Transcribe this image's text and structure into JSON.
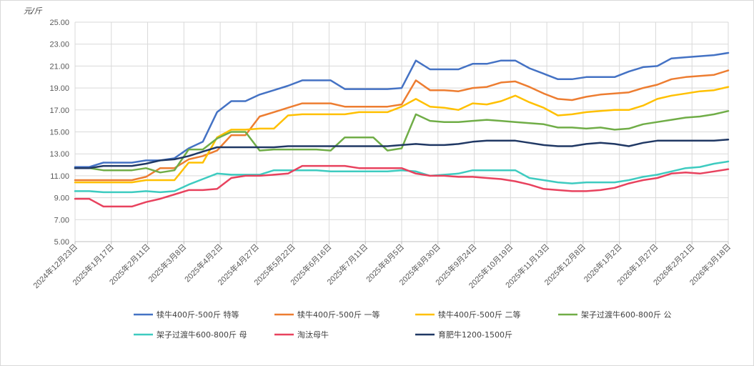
{
  "chart_data": {
    "type": "line",
    "title": "",
    "unit_label": "元/斤",
    "xlabel": "",
    "ylabel": "元/斤",
    "ylim": [
      5,
      25
    ],
    "y_ticks": [
      "5.00",
      "7.00",
      "9.00",
      "11.00",
      "13.00",
      "15.00",
      "17.00",
      "19.00",
      "21.00",
      "23.00",
      "25.00"
    ],
    "grid": true,
    "legend_position": "bottom",
    "x_tick_labels": [
      "2024年12月23日",
      "2025年1月17日",
      "2025年2月11日",
      "2025年3月8日",
      "2025年4月2日",
      "2025年4月27日",
      "2025年5月22日",
      "2025年6月16日",
      "2025年7月11日",
      "2025年8月5日",
      "2025年8月30日",
      "2025年9月24日",
      "2025年10月19日",
      "2025年11月13日",
      "2025年12月8日",
      "2026年1月2日",
      "2026年1月27日",
      "2026年2月21日",
      "2026年3月18日"
    ],
    "series": [
      {
        "name": "犊牛400斤-500斤 特等",
        "color": "#4472C4",
        "values": [
          11.8,
          11.8,
          12.2,
          12.2,
          12.2,
          12.4,
          12.4,
          12.6,
          13.5,
          14.1,
          16.8,
          17.8,
          17.8,
          18.4,
          18.8,
          19.2,
          19.7,
          19.7,
          19.7,
          18.9,
          18.9,
          18.9,
          18.9,
          19.0,
          21.5,
          20.7,
          20.7,
          20.7,
          21.2,
          21.2,
          21.5,
          21.5,
          20.8,
          20.3,
          19.8,
          19.8,
          20.0,
          20.0,
          20.0,
          20.5,
          20.9,
          21.0,
          21.7,
          21.8,
          21.9,
          22.0,
          22.2
        ]
      },
      {
        "name": "犊牛400斤-500斤 一等",
        "color": "#ED7D31",
        "values": [
          10.6,
          10.6,
          10.6,
          10.6,
          10.6,
          10.9,
          11.7,
          11.7,
          12.5,
          12.8,
          13.3,
          14.7,
          14.7,
          16.4,
          16.8,
          17.2,
          17.6,
          17.6,
          17.6,
          17.3,
          17.3,
          17.3,
          17.3,
          17.5,
          19.7,
          18.8,
          18.8,
          18.7,
          19.0,
          19.1,
          19.5,
          19.6,
          19.1,
          18.5,
          18.0,
          17.9,
          18.2,
          18.4,
          18.5,
          18.6,
          19.0,
          19.3,
          19.8,
          20.0,
          20.1,
          20.2,
          20.6
        ]
      },
      {
        "name": "犊牛400斤-500斤 二等",
        "color": "#FFC000",
        "values": [
          10.4,
          10.4,
          10.4,
          10.4,
          10.4,
          10.6,
          10.6,
          10.6,
          12.2,
          12.2,
          14.5,
          15.2,
          15.2,
          15.3,
          15.3,
          16.5,
          16.6,
          16.6,
          16.6,
          16.6,
          16.8,
          16.8,
          16.8,
          17.3,
          18.0,
          17.3,
          17.2,
          17.0,
          17.6,
          17.5,
          17.8,
          18.3,
          17.7,
          17.2,
          16.5,
          16.6,
          16.8,
          16.9,
          17.0,
          17.0,
          17.4,
          18.0,
          18.3,
          18.5,
          18.7,
          18.8,
          19.1
        ]
      },
      {
        "name": "架子过渡牛600-800斤 公",
        "color": "#70AD47",
        "values": [
          11.7,
          11.7,
          11.5,
          11.5,
          11.5,
          11.7,
          11.3,
          11.5,
          13.4,
          13.4,
          14.4,
          15.0,
          15.0,
          13.3,
          13.4,
          13.4,
          13.4,
          13.4,
          13.3,
          14.5,
          14.5,
          14.5,
          13.3,
          13.5,
          16.6,
          16.0,
          15.9,
          15.9,
          16.0,
          16.1,
          16.0,
          15.9,
          15.8,
          15.7,
          15.4,
          15.4,
          15.3,
          15.4,
          15.2,
          15.3,
          15.7,
          15.9,
          16.1,
          16.3,
          16.4,
          16.6,
          16.9
        ]
      },
      {
        "name": "架子过渡牛600-800斤 母",
        "color": "#3ECBC0",
        "values": [
          9.6,
          9.6,
          9.5,
          9.5,
          9.5,
          9.6,
          9.5,
          9.6,
          10.2,
          10.7,
          11.2,
          11.1,
          11.1,
          11.1,
          11.5,
          11.5,
          11.5,
          11.5,
          11.4,
          11.4,
          11.4,
          11.4,
          11.4,
          11.5,
          11.4,
          11.0,
          11.1,
          11.2,
          11.5,
          11.5,
          11.5,
          11.5,
          10.8,
          10.6,
          10.4,
          10.3,
          10.4,
          10.4,
          10.4,
          10.6,
          10.9,
          11.1,
          11.4,
          11.7,
          11.8,
          12.1,
          12.3
        ]
      },
      {
        "name": "淘汰母牛",
        "color": "#E8425E",
        "values": [
          8.9,
          8.9,
          8.2,
          8.2,
          8.2,
          8.6,
          8.9,
          9.3,
          9.7,
          9.7,
          9.8,
          10.8,
          11.0,
          11.0,
          11.1,
          11.2,
          11.9,
          11.9,
          11.9,
          11.9,
          11.7,
          11.7,
          11.7,
          11.7,
          11.2,
          11.0,
          11.0,
          10.9,
          10.9,
          10.8,
          10.7,
          10.5,
          10.2,
          9.8,
          9.7,
          9.6,
          9.6,
          9.7,
          9.9,
          10.3,
          10.6,
          10.8,
          11.2,
          11.3,
          11.2,
          11.4,
          11.6
        ]
      },
      {
        "name": "育肥牛1200-1500斤",
        "color": "#203864",
        "values": [
          11.7,
          11.7,
          11.9,
          11.9,
          11.9,
          12.1,
          12.4,
          12.5,
          12.8,
          13.2,
          13.6,
          13.6,
          13.6,
          13.6,
          13.6,
          13.7,
          13.7,
          13.7,
          13.7,
          13.7,
          13.7,
          13.7,
          13.7,
          13.8,
          13.9,
          13.8,
          13.8,
          13.9,
          14.1,
          14.2,
          14.2,
          14.2,
          14.0,
          13.8,
          13.7,
          13.7,
          13.9,
          14.0,
          13.9,
          13.7,
          14.0,
          14.2,
          14.2,
          14.2,
          14.2,
          14.2,
          14.3
        ]
      }
    ]
  }
}
